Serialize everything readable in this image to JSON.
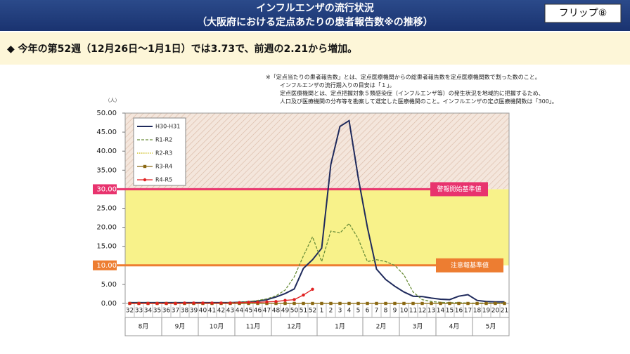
{
  "header": {
    "title": "インフルエンザの流行状況",
    "subtitle": "（大阪府における定点あたりの患者報告数※の推移）",
    "flip": "フリップ⑧",
    "headline": "◆ 今年の第52週（12月26日～1月1日）では3.73で、前週の2.21から増加。"
  },
  "notes": [
    "※「定点当たりの患者報告数」とは、定点医療機関からの総患者報告数を定点医療機関数で割った数のこと。",
    "インフルエンザの流行期入りの目安は「１」。",
    "定点医療機関とは、定点把握対象５類感染症（インフルエンザ等）の発生状況を地域的に把握するため、",
    "人口及び医療機関の分布等を勘案して選定した医療機関のこと。インフルエンザの定点医療機関数は「300」。"
  ],
  "chart_data": {
    "type": "line",
    "y_unit": "（人）",
    "categories": [
      "32",
      "33",
      "34",
      "35",
      "36",
      "37",
      "38",
      "39",
      "40",
      "41",
      "42",
      "43",
      "44",
      "45",
      "46",
      "47",
      "48",
      "49",
      "50",
      "51",
      "52",
      "1",
      "2",
      "3",
      "4",
      "5",
      "6",
      "7",
      "8",
      "9",
      "10",
      "11",
      "12",
      "13",
      "14",
      "15",
      "16",
      "17",
      "18",
      "19",
      "20",
      "21"
    ],
    "months": [
      {
        "label": "8月",
        "weeks": 4
      },
      {
        "label": "9月",
        "weeks": 4
      },
      {
        "label": "10月",
        "weeks": 4
      },
      {
        "label": "11月",
        "weeks": 4
      },
      {
        "label": "12月",
        "weeks": 5
      },
      {
        "label": "1月",
        "weeks": 5
      },
      {
        "label": "2月",
        "weeks": 4
      },
      {
        "label": "3月",
        "weeks": 4
      },
      {
        "label": "4月",
        "weeks": 4
      },
      {
        "label": "5月",
        "weeks": 4
      }
    ],
    "ylim": [
      0,
      50
    ],
    "yticks": [
      {
        "value": 0,
        "label": "0.00"
      },
      {
        "value": 5,
        "label": "5.00"
      },
      {
        "value": 10,
        "label": "10.00"
      },
      {
        "value": 15,
        "label": "15.00"
      },
      {
        "value": 20,
        "label": "20.00"
      },
      {
        "value": 25,
        "label": "25.00"
      },
      {
        "value": 30,
        "label": "30.00"
      },
      {
        "value": 35,
        "label": "35.00"
      },
      {
        "value": 40,
        "label": "40.00"
      },
      {
        "value": 45,
        "label": "45.00"
      },
      {
        "value": 50,
        "label": "50.00"
      }
    ],
    "reference_lines": [
      {
        "value": 30,
        "label": "警報開始基準値",
        "color": "#e8336e"
      },
      {
        "value": 10,
        "label": "注意報基準値",
        "color": "#ed7d31"
      }
    ],
    "series": [
      {
        "name": "H30-H31",
        "color": "#1f2a5c",
        "dash": "none",
        "marker": "none",
        "values": [
          0.2,
          0.2,
          0.2,
          0.2,
          0.2,
          0.2,
          0.2,
          0.2,
          0.2,
          0.2,
          0.2,
          0.2,
          0.3,
          0.4,
          0.6,
          1.0,
          1.7,
          2.6,
          3.8,
          9.2,
          11.5,
          14.5,
          36.5,
          46.5,
          48.0,
          33.0,
          20.0,
          9.0,
          6.3,
          4.5,
          3.0,
          1.9,
          1.8,
          1.4,
          1.1,
          1.0,
          1.9,
          2.3,
          0.8,
          0.5,
          0.4,
          0.4
        ]
      },
      {
        "name": "R1-R2",
        "color": "#6b8e3a",
        "dash": "dashed",
        "marker": "none",
        "values": [
          0.1,
          0.1,
          0.1,
          0.1,
          0.1,
          0.1,
          0.1,
          0.1,
          0.1,
          0.1,
          0.1,
          0.2,
          0.3,
          0.5,
          0.8,
          1.2,
          2.0,
          3.5,
          7.0,
          12.5,
          17.5,
          11.0,
          19.0,
          18.5,
          21.0,
          17.0,
          11.0,
          11.5,
          11.0,
          10.0,
          7.5,
          3.0,
          1.0,
          0.5,
          0.3,
          0.2,
          0.2,
          0.1,
          0.1,
          0.1,
          0.1,
          0.1
        ]
      },
      {
        "name": "R2-R3",
        "color": "#c8b400",
        "dash": "dotted",
        "marker": "none",
        "values": [
          0,
          0,
          0,
          0,
          0,
          0,
          0,
          0,
          0,
          0,
          0,
          0,
          0,
          0,
          0,
          0,
          0,
          0,
          0,
          0,
          0,
          0,
          0,
          0,
          0,
          0,
          0,
          0,
          0,
          0,
          0,
          0,
          0,
          0,
          0,
          0,
          0,
          0,
          0,
          0,
          0,
          0
        ]
      },
      {
        "name": "R3-R4",
        "color": "#8b6914",
        "dash": "none",
        "marker": "square",
        "values": [
          0,
          0,
          0,
          0,
          0,
          0,
          0,
          0,
          0,
          0,
          0,
          0,
          0,
          0,
          0,
          0,
          0,
          0,
          0,
          0,
          0,
          0,
          0,
          0,
          0,
          0,
          0,
          0,
          0,
          0,
          0,
          0,
          0,
          0,
          0,
          0,
          0,
          0,
          0,
          0,
          0,
          0
        ]
      },
      {
        "name": "R4-R5",
        "color": "#e02020",
        "dash": "none",
        "marker": "circle",
        "values": [
          0.0,
          0.0,
          0.0,
          0.0,
          0.0,
          0.0,
          0.1,
          0.1,
          0.1,
          0.1,
          0.1,
          0.1,
          0.2,
          0.3,
          0.3,
          0.4,
          0.5,
          0.8,
          1.0,
          2.21,
          3.73,
          null,
          null,
          null,
          null,
          null,
          null,
          null,
          null,
          null,
          null,
          null,
          null,
          null,
          null,
          null,
          null,
          null,
          null,
          null,
          null,
          null
        ]
      }
    ]
  }
}
